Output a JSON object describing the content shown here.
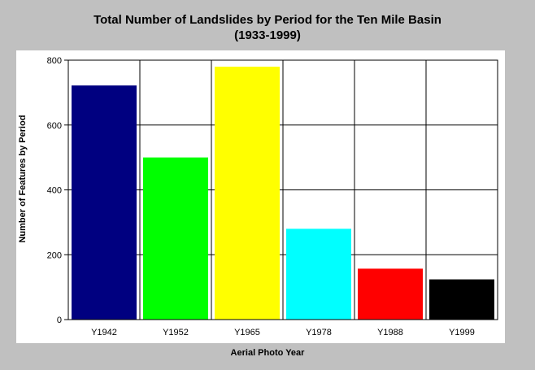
{
  "chart_data": {
    "type": "bar",
    "title": "Total Number of Landslides by Period for the Ten Mile Basin",
    "subtitle": "(1933-1999)",
    "xlabel": "Aerial Photo Year",
    "ylabel": "Number of Features by Period",
    "categories": [
      "Y1942",
      "Y1952",
      "Y1965",
      "Y1978",
      "Y1988",
      "Y1999"
    ],
    "values": [
      722,
      500,
      780,
      280,
      157,
      124
    ],
    "colors": [
      "#000080",
      "#00ff00",
      "#ffff00",
      "#00ffff",
      "#ff0000",
      "#000000"
    ],
    "ylim": [
      0,
      800
    ],
    "yticks": [
      0,
      200,
      400,
      600,
      800
    ],
    "grid": true,
    "legend": "none"
  }
}
